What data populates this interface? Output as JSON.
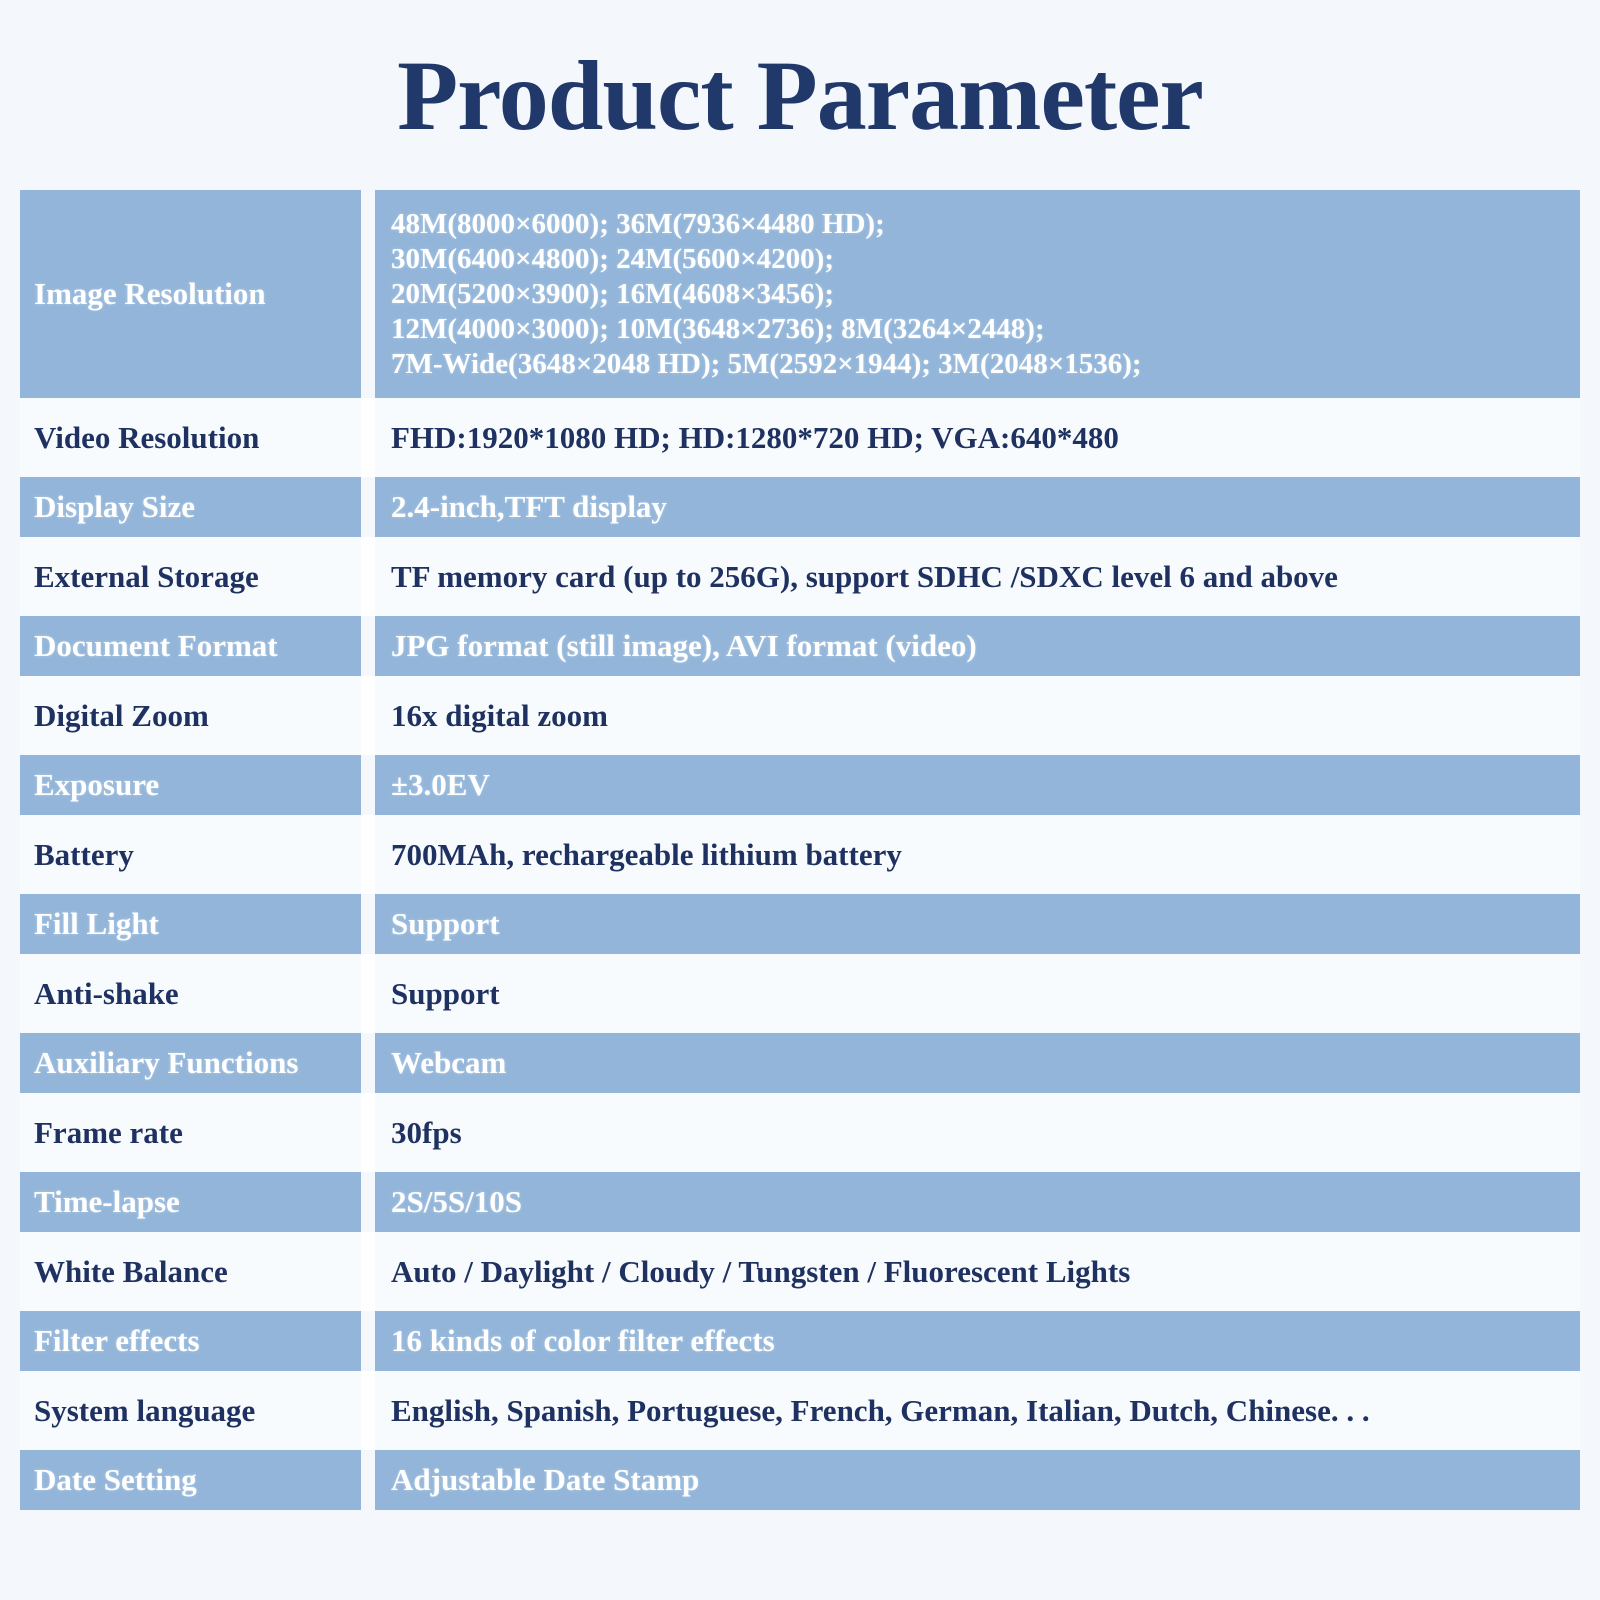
{
  "title": "Product Parameter",
  "colors": {
    "page_background": "#f4f7fc",
    "row_blue": "#92b5d9",
    "row_light": "#f8fbfe",
    "text_dark": "#1e3160",
    "text_light": "#ffffff",
    "title_color": "#21386b"
  },
  "table": {
    "rows": [
      {
        "label": "Image Resolution",
        "lines": [
          "48M(8000×6000); 36M(7936×4480 HD);",
          "30M(6400×4800); 24M(5600×4200);",
          "20M(5200×3900); 16M(4608×3456);",
          "12M(4000×3000); 10M(3648×2736); 8M(3264×2448);",
          "7M-Wide(3648×2048 HD); 5M(2592×1944); 3M(2048×1536);"
        ]
      },
      {
        "label": "Video Resolution",
        "value": "FHD:1920*1080 HD; HD:1280*720 HD; VGA:640*480"
      },
      {
        "label": "Display Size",
        "value": "2.4-inch,TFT display"
      },
      {
        "label": "External Storage",
        "value": "TF memory card (up to  256G), support SDHC /SDXC level 6 and above"
      },
      {
        "label": "Document Format",
        "value": "JPG format (still image), AVI format (video)"
      },
      {
        "label": "Digital Zoom",
        "value": "16x digital zoom"
      },
      {
        "label": "Exposure",
        "value": "±3.0EV"
      },
      {
        "label": "Battery",
        "value": "700MAh, rechargeable lithium battery"
      },
      {
        "label": "Fill Light",
        "value": "Support"
      },
      {
        "label": "Anti-shake",
        "value": "Support"
      },
      {
        "label": "Auxiliary Functions",
        "value": "Webcam"
      },
      {
        "label": "Frame rate",
        "value": "30fps"
      },
      {
        "label": "Time-lapse",
        "value": "2S/5S/10S"
      },
      {
        "label": "White Balance",
        "value": "Auto / Daylight / Cloudy / Tungsten / Fluorescent Lights"
      },
      {
        "label": "Filter effects",
        "value": "16 kinds of color filter effects"
      },
      {
        "label": "System language",
        "value": "English, Spanish, Portuguese, French, German, Italian, Dutch, Chinese. . ."
      },
      {
        "label": "Date Setting",
        "value": "Adjustable Date Stamp"
      }
    ]
  }
}
